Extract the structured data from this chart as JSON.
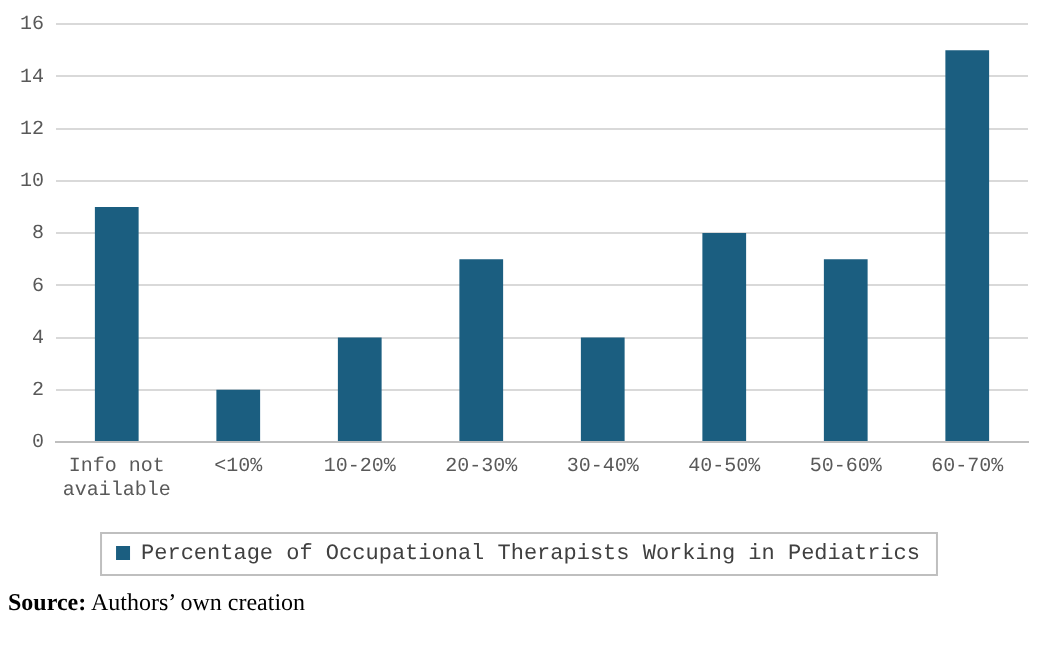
{
  "chart_data": {
    "type": "bar",
    "categories": [
      "Info not available",
      "<10%",
      "10-20%",
      "20-30%",
      "30-40%",
      "40-50%",
      "50-60%",
      "60-70%"
    ],
    "series": [
      {
        "name": "Percentage of Occupational Therapists Working in Pediatrics",
        "color": "#1b5e80",
        "values": [
          9,
          2,
          4,
          7,
          4,
          8,
          7,
          15
        ]
      }
    ],
    "ylim": [
      0,
      16
    ],
    "yticks": [
      0,
      2,
      4,
      6,
      8,
      10,
      12,
      14,
      16
    ],
    "grid": "y",
    "legend": "bottom",
    "annotations": [
      "Source: Authors’ own creation"
    ]
  }
}
